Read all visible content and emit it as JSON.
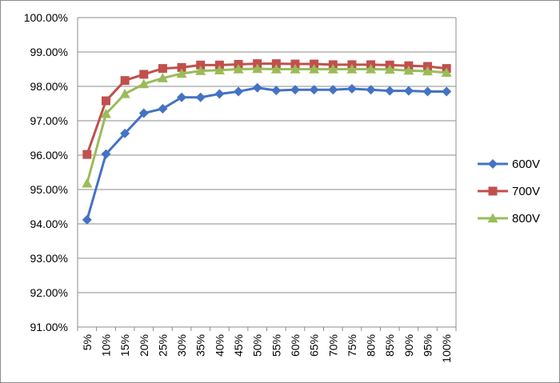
{
  "chart_data": {
    "type": "line",
    "title": "",
    "xlabel": "",
    "ylabel": "",
    "categories": [
      "5%",
      "10%",
      "15%",
      "20%",
      "25%",
      "30%",
      "35%",
      "40%",
      "45%",
      "50%",
      "55%",
      "60%",
      "65%",
      "70%",
      "75%",
      "80%",
      "85%",
      "90%",
      "95%",
      "100%"
    ],
    "y_ticks": [
      "91.00%",
      "92.00%",
      "93.00%",
      "94.00%",
      "95.00%",
      "96.00%",
      "97.00%",
      "98.00%",
      "99.00%",
      "100.00%"
    ],
    "ylim": [
      91,
      100
    ],
    "grid": true,
    "legend_position": "right",
    "series": [
      {
        "name": "600V",
        "color": "#4472C4",
        "marker": "diamond",
        "values": [
          94.12,
          96.03,
          96.63,
          97.22,
          97.35,
          97.68,
          97.68,
          97.78,
          97.85,
          97.96,
          97.88,
          97.9,
          97.9,
          97.9,
          97.93,
          97.9,
          97.87,
          97.87,
          97.85,
          97.85
        ]
      },
      {
        "name": "700V",
        "color": "#C0504D",
        "marker": "square",
        "values": [
          96.02,
          97.58,
          98.17,
          98.35,
          98.52,
          98.55,
          98.62,
          98.62,
          98.64,
          98.66,
          98.66,
          98.65,
          98.65,
          98.63,
          98.63,
          98.63,
          98.62,
          98.6,
          98.58,
          98.52
        ]
      },
      {
        "name": "800V",
        "color": "#9BBB59",
        "marker": "triangle",
        "values": [
          95.18,
          97.2,
          97.78,
          98.07,
          98.24,
          98.37,
          98.45,
          98.47,
          98.5,
          98.51,
          98.5,
          98.5,
          98.5,
          98.5,
          98.5,
          98.5,
          98.49,
          98.46,
          98.44,
          98.4
        ]
      }
    ]
  }
}
